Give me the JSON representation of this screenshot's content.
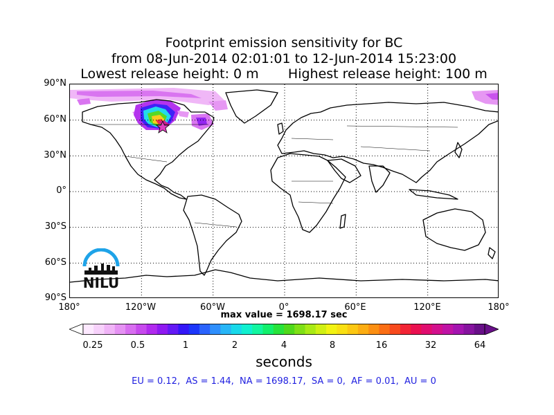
{
  "title": {
    "line1": "Footprint emission sensitivity for BC",
    "line2": "from 08-Jun-2014 02:01:01 to 12-Jun-2014 15:23:00",
    "line3": "Lowest release height: 0 m       Highest release height: 100 m"
  },
  "map": {
    "lat_labels": [
      "90°N",
      "60°N",
      "30°N",
      "0°",
      "30°S",
      "60°S",
      "90°S"
    ],
    "lon_labels": [
      "180°",
      "120°W",
      "60°W",
      "0°",
      "60°E",
      "120°E",
      "180°"
    ],
    "lat_range": [
      -90,
      90
    ],
    "lon_range": [
      -180,
      180
    ],
    "graticule": "dotted 30° grid",
    "release_site_marker": "star",
    "logo_text": "NILU"
  },
  "max_value_text": "max value = 1698.17 sec",
  "colorbar": {
    "tick_labels": [
      "0.25",
      "0.5",
      "1",
      "2",
      "4",
      "8",
      "16",
      "32",
      "64"
    ],
    "units": "seconds",
    "colors": [
      "#fde9ff",
      "#f7d1fb",
      "#f0b4f7",
      "#e592f3",
      "#d86ef0",
      "#c74aed",
      "#b12aee",
      "#8f19f1",
      "#6419f5",
      "#3417f8",
      "#1c36fb",
      "#2a63fd",
      "#2e8ffd",
      "#27b6f7",
      "#18d9ea",
      "#10f0cf",
      "#12f6a0",
      "#12f06c",
      "#27e33b",
      "#4fd91b",
      "#7fe016",
      "#a9ea15",
      "#d0f013",
      "#f2f312",
      "#f9e012",
      "#fcc812",
      "#fcad12",
      "#fc8f12",
      "#fb6e14",
      "#f84a1d",
      "#f22435",
      "#ea1050",
      "#e00d6f",
      "#d2108d",
      "#bf13a5",
      "#a414b0",
      "#86139f",
      "#680f88"
    ]
  },
  "regions_text": "EU = 0.12,  AS = 1.44,  NA = 1698.17,  SA = 0,  AF = 0.01,  AU = 0"
}
